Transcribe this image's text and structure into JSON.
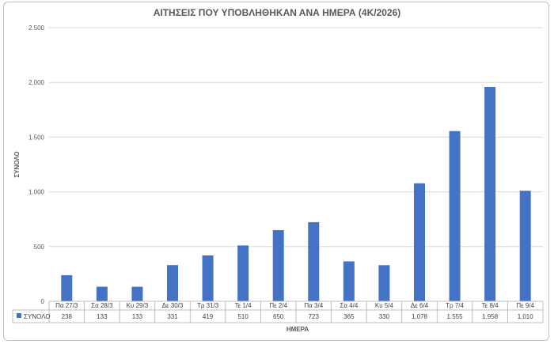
{
  "chart_data": {
    "type": "bar",
    "title": "ΑΙΤΗΣΕΙΣ ΠΟΥ ΥΠΟΒΛΗΘΗΚΑΝ ΑΝΑ ΗΜΕΡΑ (4Κ/2026)",
    "xlabel": "ΗΜΕΡΑ",
    "ylabel": "ΣΥΝΟΛΟ",
    "ylim": [
      0,
      2500
    ],
    "yticks": [
      0,
      500,
      1000,
      1500,
      2000,
      2500
    ],
    "ytick_labels": [
      "0",
      "500",
      "1.000",
      "1.500",
      "2.000",
      "2.500"
    ],
    "grid": true,
    "legend": "data-table",
    "categories": [
      "Πα 27/3",
      "Σα 28/3",
      "Κυ 29/3",
      "Δε 30/3",
      "Τρ 31/3",
      "Τε 1/4",
      "Πε 2/4",
      "Πα 3/4",
      "Σα 4/4",
      "Κυ 5/4",
      "Δε 6/4",
      "Τρ 7/4",
      "Τε 8/4",
      "Πε 9/4"
    ],
    "series": [
      {
        "name": "ΣΥΝΟΛΟ",
        "color": "#4472c4",
        "values": [
          238,
          133,
          133,
          331,
          419,
          510,
          650,
          723,
          365,
          330,
          1078,
          1555,
          1958,
          1010
        ],
        "value_labels": [
          "238",
          "133",
          "133",
          "331",
          "419",
          "510",
          "650",
          "723",
          "365",
          "330",
          "1.078",
          "1.555",
          "1.958",
          "1.010"
        ]
      }
    ]
  }
}
